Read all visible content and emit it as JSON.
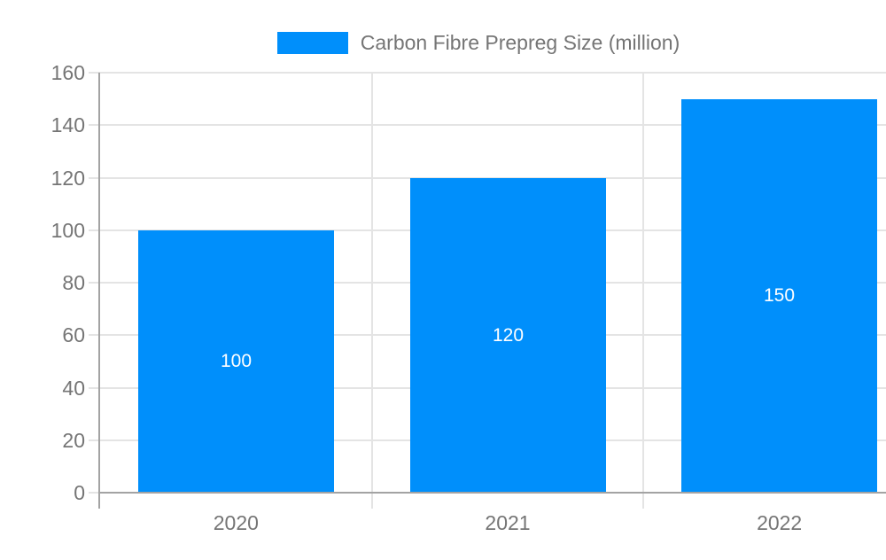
{
  "chart_data": {
    "type": "bar",
    "title": "Carbon Fibre Prepreg Size (million)",
    "categories": [
      "2020",
      "2021",
      "2022"
    ],
    "series": [
      {
        "name": "Carbon Fibre Prepreg Size (million)",
        "values": [
          100,
          120,
          150
        ]
      }
    ],
    "value_labels": [
      "100",
      "120",
      "150"
    ],
    "ylim": [
      0,
      160
    ],
    "ytick_step": 20,
    "ytick_labels": [
      "0",
      "20",
      "40",
      "60",
      "80",
      "100",
      "120",
      "140",
      "160"
    ],
    "grid": true,
    "legend_position": "top",
    "colors": {
      "bar": "#008FFB",
      "grid": "#e4e4e4",
      "axis": "#a3a3a3",
      "text": "#757575",
      "value_label": "#ffffff",
      "background": "#ffffff"
    }
  }
}
